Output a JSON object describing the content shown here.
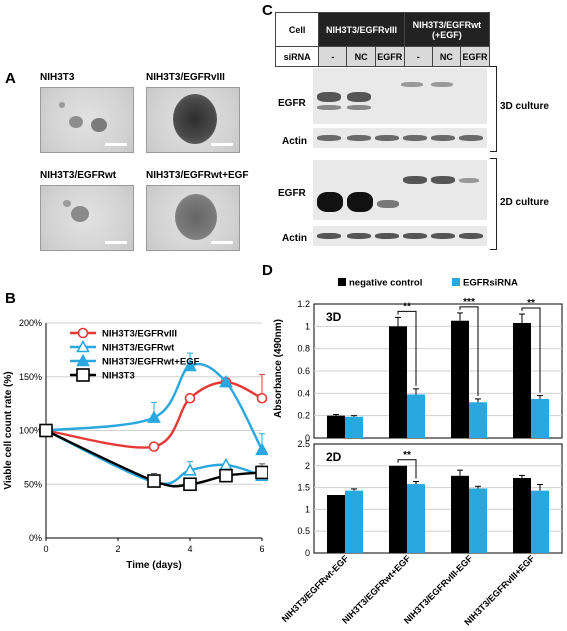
{
  "panels": {
    "a": "A",
    "b": "B",
    "c": "C",
    "d": "D"
  },
  "panel_a": {
    "images": [
      {
        "title": "NIH3T3"
      },
      {
        "title": "NIH3T3/EGFRvIII"
      },
      {
        "title": "NIH3T3/EGFRwt"
      },
      {
        "title": "NIH3T3/EGFRwt+EGF"
      }
    ]
  },
  "panel_c": {
    "cell_label": "Cell",
    "sirna_label": "siRNA",
    "group1": "NIH3T3/EGFRvIII",
    "group2": "NIH3T3/EGFRwt (+EGF)",
    "lanes": [
      "-",
      "NC",
      "EGFR",
      "-",
      "NC",
      "EGFR"
    ],
    "egfr_label": "EGFR",
    "actin_label": "Actin",
    "culture_3d": "3D culture",
    "culture_2d": "2D culture"
  },
  "chart_data": [
    {
      "type": "line",
      "panel": "B",
      "xlabel": "Time (days)",
      "ylabel": "Viable cell count rate (%)",
      "xlim": [
        0,
        6
      ],
      "ylim": [
        0,
        200
      ],
      "x_ticks": [
        0,
        2,
        4,
        6
      ],
      "y_ticks": [
        "0%",
        "50%",
        "100%",
        "150%",
        "200%"
      ],
      "legend_position": "top-right",
      "x": [
        0,
        3,
        4,
        5,
        6
      ],
      "series": [
        {
          "name": "NIH3T3/EGFRvIII",
          "color": "#e53935",
          "marker": "circle-open",
          "values": [
            100,
            85,
            130,
            145,
            130
          ],
          "errors": [
            0,
            0,
            0,
            0,
            22
          ]
        },
        {
          "name": "NIH3T3/EGFRwt",
          "color": "#29a8df",
          "marker": "triangle-open",
          "values": [
            100,
            52,
            63,
            68,
            58
          ],
          "errors": [
            0,
            0,
            8,
            0,
            0
          ]
        },
        {
          "name": "NIH3T3/EGFRwt+EGF",
          "color": "#29a8df",
          "marker": "triangle-filled",
          "values": [
            100,
            112,
            160,
            145,
            82
          ],
          "errors": [
            0,
            14,
            12,
            0,
            15
          ]
        },
        {
          "name": "NIH3T3",
          "color": "#000000",
          "marker": "square-open",
          "values": [
            100,
            53,
            50,
            58,
            61
          ],
          "errors": [
            0,
            7,
            0,
            0,
            8
          ]
        }
      ]
    },
    {
      "type": "bar",
      "panel": "D",
      "ylabel": "Absorbance (490nm)",
      "categories": [
        "NIH3T3/EGFRwt-EGF",
        "NIH3T3/EGFRwt+EGF",
        "NIH3T3/EGFRvIII-EGF",
        "NIH3T3/EGFRvIII+EGF"
      ],
      "legend_position": "top",
      "subplots": [
        {
          "label": "3D",
          "ylim": [
            0,
            1.2
          ],
          "y_ticks": [
            "0",
            "0.2",
            "0.4",
            "0.6",
            "0.8",
            "1",
            "1.2"
          ],
          "series": [
            {
              "name": "negative control",
              "color": "#000000",
              "values": [
                0.2,
                1.0,
                1.05,
                1.03
              ],
              "errors": [
                0.01,
                0.08,
                0.07,
                0.08
              ]
            },
            {
              "name": "EGFRsiRNA",
              "color": "#29a8df",
              "values": [
                0.19,
                0.39,
                0.32,
                0.35
              ],
              "errors": [
                0.01,
                0.05,
                0.03,
                0.03
              ]
            }
          ],
          "significance": [
            "",
            "**",
            "***",
            "**"
          ]
        },
        {
          "label": "2D",
          "ylim": [
            0,
            2.5
          ],
          "y_ticks": [
            "0",
            "0.5",
            "1",
            "1.5",
            "2",
            "2.5"
          ],
          "series": [
            {
              "name": "negative control",
              "color": "#000000",
              "values": [
                1.33,
                2.0,
                1.77,
                1.72
              ],
              "errors": [
                0.0,
                0.0,
                0.13,
                0.06
              ]
            },
            {
              "name": "EGFRsiRNA",
              "color": "#29a8df",
              "values": [
                1.43,
                1.58,
                1.48,
                1.43
              ],
              "errors": [
                0.04,
                0.06,
                0.05,
                0.14
              ]
            }
          ],
          "significance": [
            "",
            "**",
            "",
            ""
          ]
        }
      ]
    }
  ]
}
